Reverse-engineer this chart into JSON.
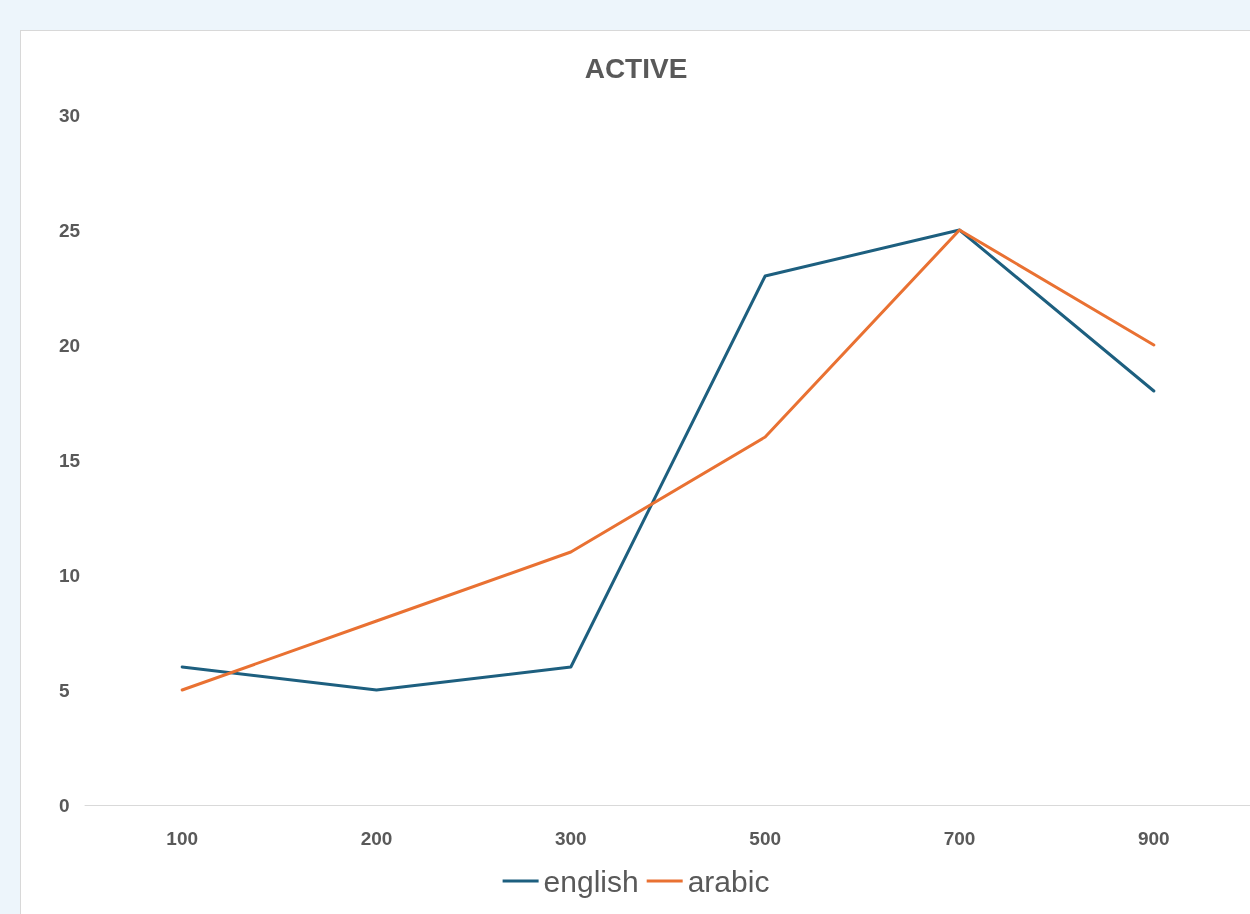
{
  "chart_data": {
    "type": "line",
    "title": "ACTIVE",
    "categories": [
      "100",
      "200",
      "300",
      "500",
      "700",
      "900"
    ],
    "series": [
      {
        "name": "english",
        "color": "#1d5f7f",
        "values": [
          6,
          5,
          6,
          23,
          25,
          18
        ]
      },
      {
        "name": "arabic",
        "color": "#e97132",
        "values": [
          5,
          8,
          11,
          16,
          25,
          20
        ]
      }
    ],
    "ylim": [
      0,
      30
    ],
    "yticks": [
      0,
      5,
      10,
      15,
      20,
      25,
      30
    ],
    "grid": false,
    "legend": "bottom",
    "marker": "none",
    "line_style": "solid"
  }
}
